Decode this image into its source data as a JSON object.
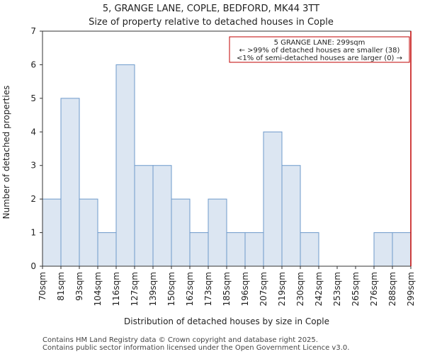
{
  "chart_data": {
    "type": "bar",
    "title": "5, GRANGE LANE, COPLE, BEDFORD, MK44 3TT",
    "subtitle": "Size of property relative to detached houses in Cople",
    "xlabel": "Distribution of detached houses by size in Cople",
    "ylabel": "Number of detached properties",
    "bin_edges": [
      "70sqm",
      "81sqm",
      "93sqm",
      "104sqm",
      "116sqm",
      "127sqm",
      "139sqm",
      "150sqm",
      "162sqm",
      "173sqm",
      "185sqm",
      "196sqm",
      "207sqm",
      "219sqm",
      "230sqm",
      "242sqm",
      "253sqm",
      "265sqm",
      "276sqm",
      "288sqm",
      "299sqm"
    ],
    "values": [
      2,
      5,
      2,
      1,
      6,
      3,
      3,
      2,
      1,
      2,
      1,
      1,
      4,
      3,
      1,
      0,
      0,
      0,
      1,
      1
    ],
    "ylim": [
      0,
      7
    ],
    "yticks": [
      0,
      1,
      2,
      3,
      4,
      5,
      6,
      7
    ],
    "bar_color": "#dce6f2",
    "bar_edge_color": "#6e9acb",
    "marker": {
      "value_label": "299sqm",
      "color": "#c00000",
      "annotation": [
        "5 GRANGE LANE: 299sqm",
        "← >99% of detached houses are smaller (38)",
        "<1% of semi-detached houses are larger (0) →"
      ]
    },
    "footer": [
      "Contains HM Land Registry data © Crown copyright and database right 2025.",
      "Contains public sector information licensed under the Open Government Licence v3.0."
    ]
  }
}
